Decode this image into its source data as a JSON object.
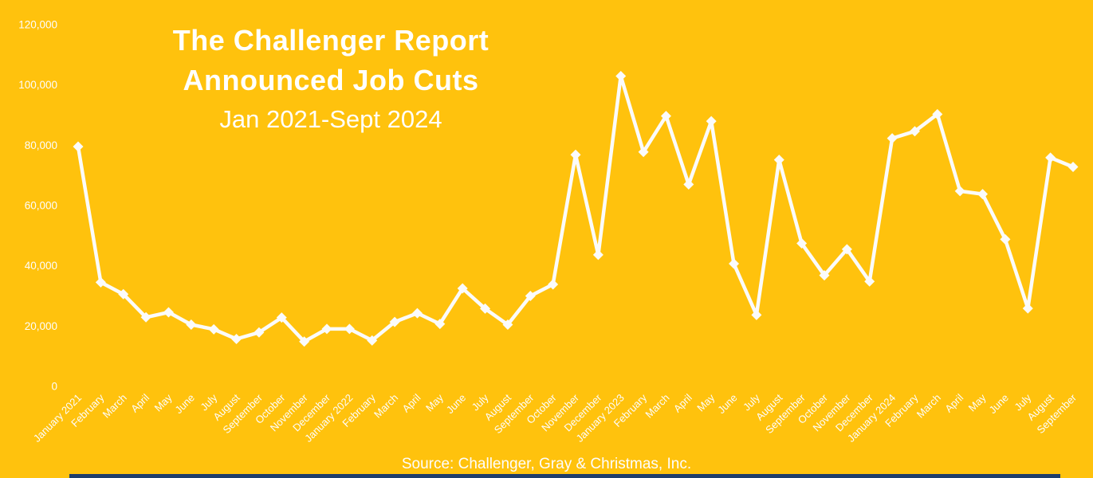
{
  "chart_data": {
    "type": "line",
    "title_line1": "The Challenger Report",
    "title_line2": "Announced Job Cuts",
    "subtitle": "Jan 2021-Sept 2024",
    "source": "Source: Challenger, Gray & Christmas, Inc.",
    "legend": false,
    "grid": false,
    "ylim": [
      0,
      120000
    ],
    "ytick_interval": 20000,
    "ytick_labels": [
      "0",
      "20,000",
      "40,000",
      "60,000",
      "80,000",
      "100,000",
      "120,000"
    ],
    "categories": [
      "January 2021",
      "February",
      "March",
      "April",
      "May",
      "June",
      "July",
      "August",
      "September",
      "October",
      "November",
      "December",
      "January 2022",
      "February",
      "March",
      "April",
      "May",
      "June",
      "July",
      "August",
      "September",
      "October",
      "November",
      "December",
      "January 2023",
      "February",
      "March",
      "April",
      "May",
      "June",
      "July",
      "August",
      "September",
      "October",
      "November",
      "December",
      "January 2024",
      "February",
      "March",
      "April",
      "May",
      "June",
      "July",
      "August",
      "September"
    ],
    "series": [
      {
        "name": "Announced Job Cuts",
        "values": [
          79552,
          34531,
          30603,
          22913,
          24586,
          20476,
          18942,
          15723,
          17895,
          22822,
          14875,
          19052,
          19064,
          15245,
          21387,
          24286,
          20712,
          32517,
          25810,
          20485,
          29989,
          33843,
          76835,
          43651,
          102943,
          77770,
          89703,
          66995,
          88000,
          40709,
          23697,
          75151,
          47457,
          36836,
          45510,
          34817,
          82307,
          84638,
          90309,
          64789,
          63816,
          48786,
          25885,
          75891,
          72821
        ]
      }
    ],
    "colors": {
      "background": "#FFC20D",
      "line": "#FBFBFB",
      "marker": "#FBFBFB",
      "text": "#FDFDFD",
      "bottom_bar": "#1E3D6B"
    }
  }
}
